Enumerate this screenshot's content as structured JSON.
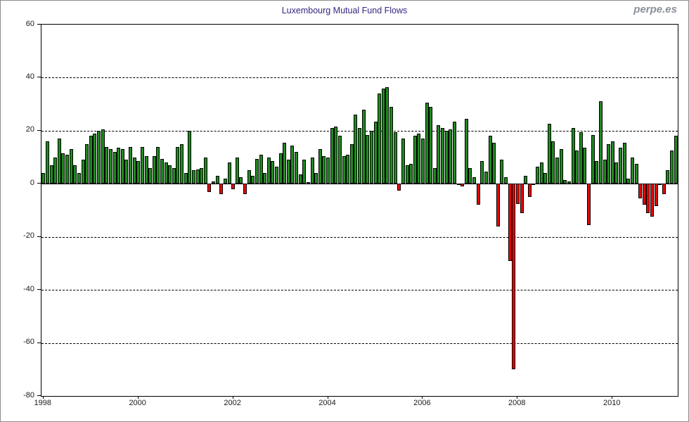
{
  "header": {
    "title": "Luxembourg Mutual Fund Flows",
    "title_color": "#352680",
    "watermark": "perpe.es",
    "watermark_color": "#8a8f9a"
  },
  "chart_data": {
    "type": "bar",
    "title": "Luxembourg Mutual Fund Flows",
    "xlabel": "",
    "ylabel": "",
    "frequency": "monthly",
    "start_month": "1998-01",
    "end_month": "2011-05",
    "ylim": [
      -80,
      60
    ],
    "y_ticks": [
      60,
      40,
      20,
      0,
      -20,
      -40,
      -60,
      -80
    ],
    "x_tick_labels": [
      "1998",
      "2000",
      "2002",
      "2004",
      "2006",
      "2008",
      "2010"
    ],
    "x_tick_month_indices": [
      0,
      24,
      48,
      72,
      96,
      120,
      144
    ],
    "grid": "horizontal dashed at 40, 20, -20, -40, -60; solid line at 0",
    "legend": "none",
    "colors": {
      "positive": "#1F8A1F",
      "negative": "#EC0000",
      "bar_border": "#000000"
    },
    "values": [
      4,
      16,
      7,
      10,
      17,
      11.5,
      11,
      13,
      7,
      4,
      9,
      15,
      18,
      19,
      20,
      20.5,
      14,
      13,
      12,
      13.5,
      13,
      9,
      14,
      10,
      8.5,
      14,
      10.5,
      6,
      10.5,
      14,
      9.5,
      8,
      7,
      6,
      14,
      15,
      4,
      20,
      5,
      5.5,
      6,
      10,
      -3,
      1,
      3,
      -4,
      2,
      8,
      -2,
      10,
      2.5,
      -4,
      5,
      3,
      9.5,
      11,
      4,
      10,
      8.5,
      6.5,
      11.5,
      15.5,
      9,
      14.5,
      12,
      3.5,
      9,
      0.5,
      10,
      4,
      13,
      10.5,
      10,
      21,
      21.5,
      18,
      10.5,
      11,
      15,
      26,
      21,
      28,
      18.5,
      20,
      23.5,
      34,
      36,
      36.5,
      29,
      19.5,
      -2.5,
      17,
      7,
      7.5,
      18,
      19,
      17,
      30.5,
      29,
      6,
      22,
      21,
      20,
      20.5,
      23.5,
      -0.5,
      -1,
      24.5,
      6,
      2.5,
      -8,
      8.5,
      4.5,
      18,
      15.5,
      -16,
      9,
      2.5,
      -29,
      -70,
      -7.5,
      -11,
      3,
      -5,
      -0.5,
      6.5,
      8,
      4,
      22.5,
      16,
      10,
      13,
      1.5,
      1,
      21,
      12.5,
      19.5,
      13.5,
      -15.5,
      18.5,
      8.5,
      31,
      9,
      15,
      16,
      8,
      13.5,
      15.5,
      2,
      10,
      7.5,
      -5.5,
      -8,
      -11,
      -12.5,
      -8.5,
      -0.5,
      -4,
      5,
      12.5,
      18
    ]
  }
}
